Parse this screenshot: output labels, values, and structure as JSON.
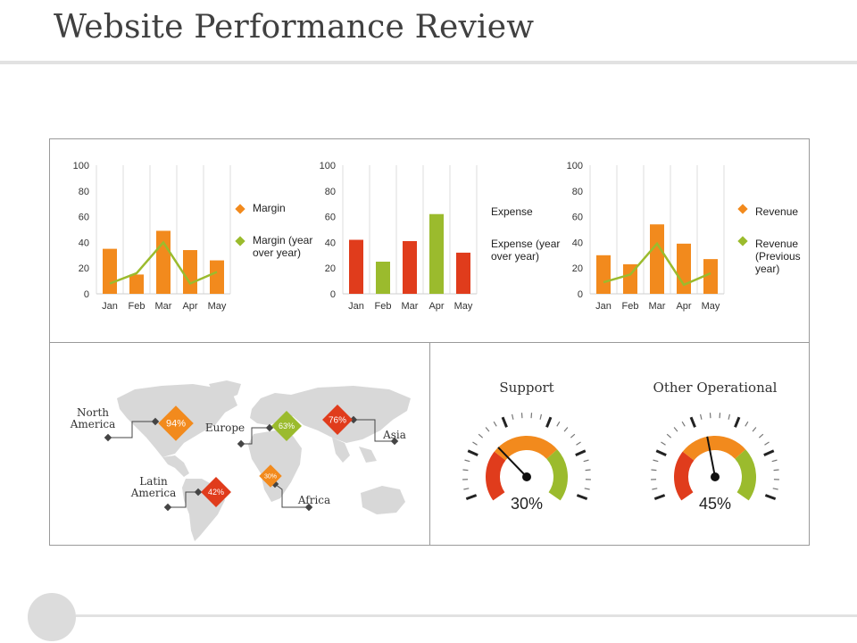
{
  "page": {
    "title": "Website Performance Review"
  },
  "colors": {
    "orange": "#f28a1d",
    "green": "#9bbb2d",
    "red": "#e03c1c",
    "grid": "#d9d9d9",
    "axis": "#d0d0d0"
  },
  "chart_data": [
    {
      "type": "bar",
      "categories": [
        "Jan",
        "Feb",
        "Mar",
        "Apr",
        "May"
      ],
      "series": [
        {
          "name": "Margin",
          "kind": "bar",
          "values": [
            35,
            15,
            49,
            34,
            26
          ],
          "color": "#f28a1d"
        },
        {
          "name": "Margin (year over year)",
          "kind": "line",
          "values": [
            8,
            16,
            40,
            8,
            17
          ],
          "color": "#9bbb2d"
        }
      ],
      "ylim": [
        0,
        100
      ],
      "yticks": [
        0,
        20,
        40,
        60,
        80,
        100
      ]
    },
    {
      "type": "bar",
      "categories": [
        "Jan",
        "Feb",
        "Mar",
        "Apr",
        "May"
      ],
      "series": [
        {
          "name": "Expense",
          "kind": "bar",
          "values": [
            42,
            25,
            41,
            62,
            32
          ],
          "colors": [
            "#e03c1c",
            "#9bbb2d",
            "#e03c1c",
            "#9bbb2d",
            "#e03c1c"
          ]
        }
      ],
      "legend_extra": "Expense (year over year)",
      "ylim": [
        0,
        100
      ],
      "yticks": [
        0,
        20,
        40,
        60,
        80,
        100
      ]
    },
    {
      "type": "bar",
      "categories": [
        "Jan",
        "Feb",
        "Mar",
        "Apr",
        "May"
      ],
      "series": [
        {
          "name": "Revenue",
          "kind": "bar",
          "values": [
            30,
            23,
            54,
            39,
            27
          ],
          "color": "#f28a1d"
        },
        {
          "name": "Revenue (Previous year)",
          "kind": "line",
          "values": [
            9,
            15,
            39,
            7,
            16
          ],
          "color": "#9bbb2d"
        }
      ],
      "ylim": [
        0,
        100
      ],
      "yticks": [
        0,
        20,
        40,
        60,
        80,
        100
      ]
    }
  ],
  "legends": [
    {
      "item1": "Margin",
      "item2": "Margin (year over year)"
    },
    {
      "item1": "Expense",
      "item2": "Expense (year over year)"
    },
    {
      "item1": "Revenue",
      "item2": "Revenue (Previous year)"
    }
  ],
  "map": {
    "regions": [
      {
        "name": "North America",
        "value": "94%",
        "color": "#f28a1d"
      },
      {
        "name": "Europe",
        "value": "63%",
        "color": "#9bbb2d"
      },
      {
        "name": "Asia",
        "value": "76%",
        "color": "#e03c1c"
      },
      {
        "name": "Latin America",
        "value": "42%",
        "color": "#e03c1c"
      },
      {
        "name": "Africa",
        "value": "30%",
        "color": "#f28a1d"
      }
    ]
  },
  "gauges": [
    {
      "title": "Support",
      "value_label": "30%",
      "value": 30
    },
    {
      "title": "Other Operational",
      "value_label": "45%",
      "value": 45
    }
  ]
}
